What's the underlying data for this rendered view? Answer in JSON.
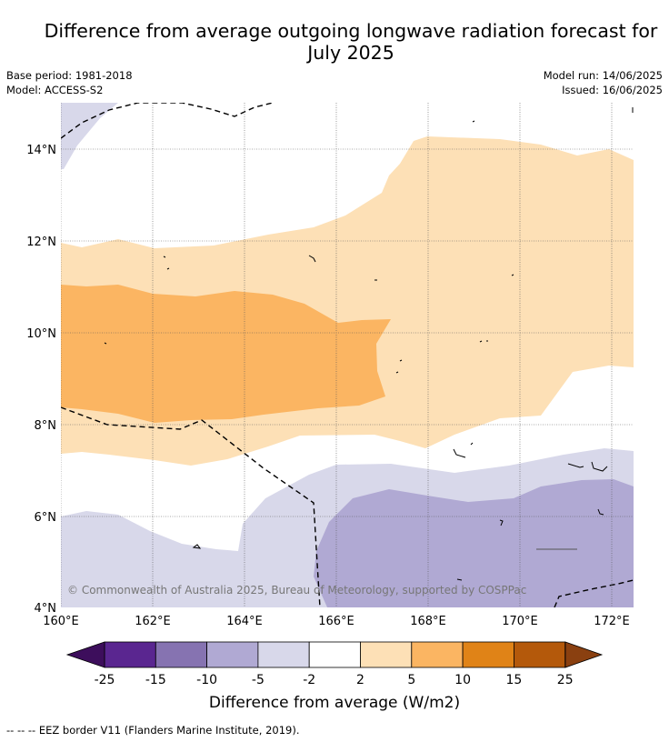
{
  "title_line1": "Difference from average outgoing longwave radiation forecast for",
  "title_line2": "July 2025",
  "meta": {
    "base_period": "Base period: 1981-2018",
    "model": "Model: ACCESS-S2",
    "model_run": "Model run: 14/06/2025",
    "issued": "Issued: 16/06/2025"
  },
  "map": {
    "lat_labels": [
      "14°N",
      "12°N",
      "10°N",
      "8°N",
      "6°N",
      "4°N"
    ],
    "lon_labels": [
      "160°E",
      "162°E",
      "164°E",
      "166°E",
      "168°E",
      "170°E",
      "172°E"
    ],
    "copyright": "© Commonwealth of Australia 2025, Bureau of Meteorology, supported by COSPPac"
  },
  "colorbar": {
    "ticks": [
      "-25",
      "-15",
      "-10",
      "-5",
      "-2",
      "2",
      "5",
      "10",
      "15",
      "25"
    ],
    "colors": [
      "#5a2690",
      "#8673b1",
      "#b0a9d3",
      "#d8d8ea",
      "#ffffff",
      "#fde0b6",
      "#fbb562",
      "#e08317",
      "#b4590b"
    ],
    "under_color": "#3d0e5c",
    "over_color": "#8a4010",
    "label": "Difference from average (W/m2)"
  },
  "footer": "--  --  -- EEZ border V11 (Flanders Marine Institute, 2019)."
}
